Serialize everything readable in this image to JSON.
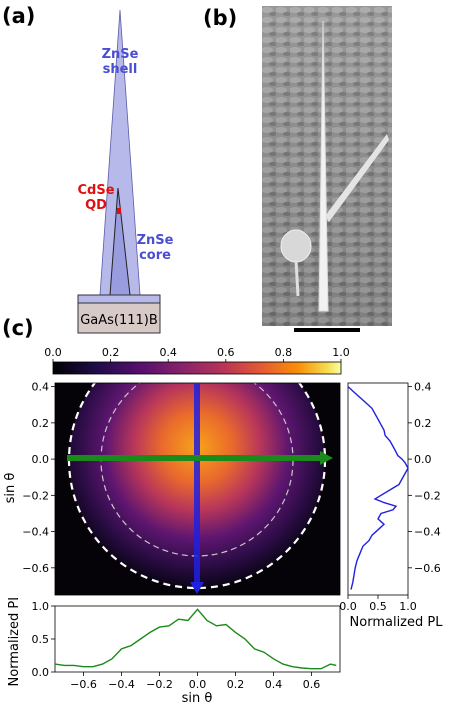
{
  "panel_labels": {
    "a": "(a)",
    "b": "(b)",
    "c": "(c)"
  },
  "schematic": {
    "shell_label_line1": "ZnSe",
    "shell_label_line2": "shell",
    "qd_label_line1": "CdSe",
    "qd_label_line2": "QD",
    "core_label_line1": "ZnSe",
    "core_label_line2": "core",
    "substrate_label": "GaAs(111)B",
    "colors": {
      "shell": "#b7b9ea",
      "shell_edge": "#5a5ca8",
      "label_blue": "#4a4ed0",
      "qd_red": "#e01010",
      "substrate": "#d7c9c6"
    }
  },
  "sem": {
    "description_icon": "sem-micrograph",
    "scale_bar_visible": true
  },
  "colorbar": {
    "colormap": "inferno",
    "ticks": [
      "0.0",
      "0.2",
      "0.4",
      "0.6",
      "0.8",
      "1.0"
    ]
  },
  "main_map": {
    "ylabel": "sin θ",
    "yticks": [
      "0.4",
      "0.2",
      "0.0",
      "−0.2",
      "−0.4",
      "−0.6"
    ],
    "line_colors": {
      "horizontal": "#1a8a1a",
      "vertical": "#2020e0",
      "circle": "#ffffff"
    }
  },
  "chart_data": [
    {
      "type": "line",
      "name": "vertical-cut",
      "x": [
        0.0,
        0.1,
        0.2,
        0.3,
        0.4,
        0.45,
        0.5,
        0.55,
        0.6,
        0.62,
        0.7,
        0.75,
        0.8,
        0.83,
        0.9,
        0.95,
        1.0,
        0.95,
        0.9,
        0.85,
        0.7,
        0.55,
        0.45,
        0.6,
        0.8,
        0.75,
        0.55,
        0.5,
        0.6,
        0.5,
        0.4,
        0.35,
        0.25,
        0.2,
        0.15,
        0.12,
        0.1,
        0.08,
        0.05
      ],
      "y": [
        0.4,
        0.37,
        0.34,
        0.31,
        0.28,
        0.25,
        0.22,
        0.19,
        0.16,
        0.13,
        0.1,
        0.07,
        0.04,
        0.02,
        0.0,
        -0.02,
        -0.05,
        -0.08,
        -0.11,
        -0.14,
        -0.17,
        -0.2,
        -0.22,
        -0.24,
        -0.26,
        -0.28,
        -0.3,
        -0.33,
        -0.36,
        -0.39,
        -0.42,
        -0.45,
        -0.48,
        -0.52,
        -0.56,
        -0.6,
        -0.64,
        -0.68,
        -0.72
      ],
      "xlabel": "Normalized PL",
      "xlim": [
        0,
        1
      ],
      "ylim": [
        -0.75,
        0.42
      ],
      "xticks": [
        "0.0",
        "0.5",
        "1.0"
      ],
      "yticks": [
        "0.4",
        "0.2",
        "0.0",
        "−0.2",
        "−0.4",
        "−0.6"
      ]
    },
    {
      "type": "line",
      "name": "horizontal-cut",
      "x": [
        -0.75,
        -0.7,
        -0.65,
        -0.6,
        -0.55,
        -0.5,
        -0.45,
        -0.4,
        -0.35,
        -0.3,
        -0.25,
        -0.2,
        -0.15,
        -0.1,
        -0.05,
        0.0,
        0.05,
        0.1,
        0.15,
        0.2,
        0.25,
        0.3,
        0.35,
        0.4,
        0.45,
        0.5,
        0.55,
        0.6,
        0.65,
        0.7,
        0.73
      ],
      "y": [
        0.12,
        0.1,
        0.1,
        0.08,
        0.08,
        0.12,
        0.2,
        0.35,
        0.4,
        0.5,
        0.6,
        0.68,
        0.7,
        0.8,
        0.78,
        0.95,
        0.78,
        0.7,
        0.72,
        0.6,
        0.5,
        0.35,
        0.3,
        0.2,
        0.12,
        0.08,
        0.06,
        0.05,
        0.05,
        0.12,
        0.1
      ],
      "ylabel": "Normalized PL",
      "xlabel": "sin θ",
      "xlim": [
        -0.75,
        0.75
      ],
      "ylim": [
        0,
        1
      ],
      "xticks": [
        "−0.6",
        "−0.4",
        "−0.2",
        "0.0",
        "0.2",
        "0.4",
        "0.6"
      ],
      "yticks": [
        "0.0",
        "0.5",
        "1.0"
      ]
    }
  ]
}
